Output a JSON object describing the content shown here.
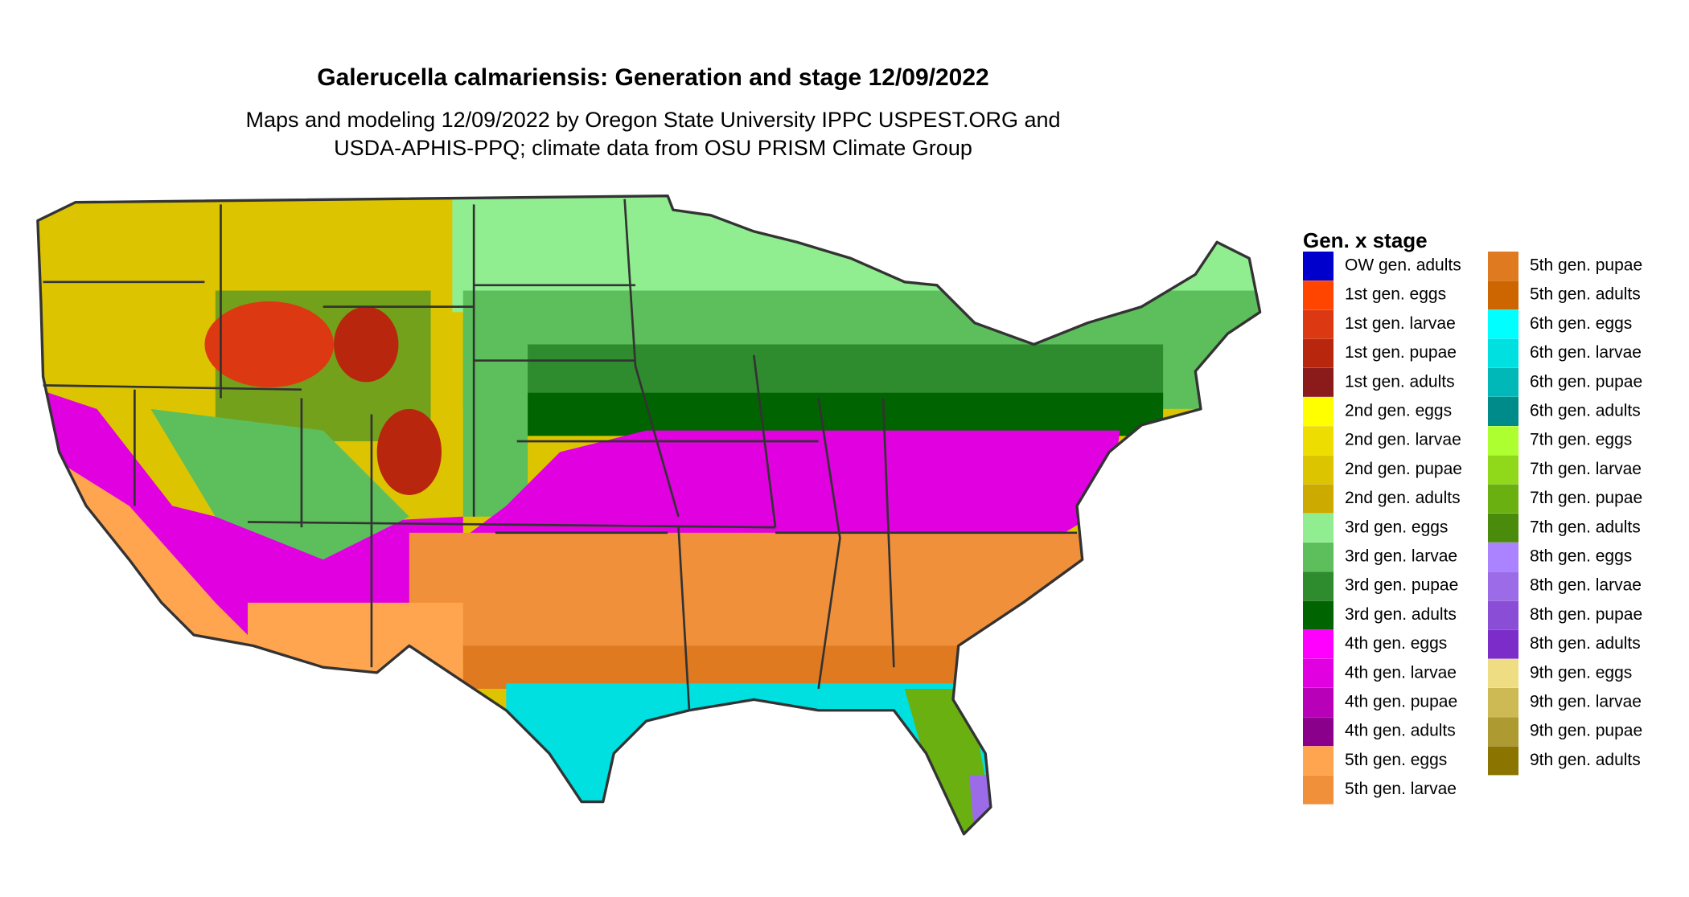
{
  "title": "Galerucella calmariensis: Generation and stage 12/09/2022",
  "subtitle": [
    "Maps and modeling 12/09/2022 by Oregon State University IPPC USPEST.ORG and",
    "USDA-APHIS-PPQ; climate data from OSU PRISM Climate Group"
  ],
  "legend": {
    "title": "Gen. x stage",
    "items": [
      {
        "label": "OW gen. adults",
        "color": "#0000cd"
      },
      {
        "label": "1st gen. eggs",
        "color": "#ff4500"
      },
      {
        "label": "1st gen. larvae",
        "color": "#dc3912"
      },
      {
        "label": "1st gen. pupae",
        "color": "#b8260e"
      },
      {
        "label": "1st gen. adults",
        "color": "#8b1a1a"
      },
      {
        "label": "2nd gen. eggs",
        "color": "#ffff00"
      },
      {
        "label": "2nd gen. larvae",
        "color": "#eedd00"
      },
      {
        "label": "2nd gen. pupae",
        "color": "#ddc400"
      },
      {
        "label": "2nd gen. adults",
        "color": "#ccaa00"
      },
      {
        "label": "3rd gen. eggs",
        "color": "#90ee90"
      },
      {
        "label": "3rd gen. larvae",
        "color": "#5cbf5c"
      },
      {
        "label": "3rd gen. pupae",
        "color": "#2e8b2e"
      },
      {
        "label": "3rd gen. adults",
        "color": "#006400"
      },
      {
        "label": "4th gen. eggs",
        "color": "#ff00ff"
      },
      {
        "label": "4th gen. larvae",
        "color": "#e000e0"
      },
      {
        "label": "4th gen. pupae",
        "color": "#b800b8"
      },
      {
        "label": "4th gen. adults",
        "color": "#8b008b"
      },
      {
        "label": "5th gen. eggs",
        "color": "#ffa54f"
      },
      {
        "label": "5th gen. larvae",
        "color": "#f0903a"
      },
      {
        "label": "5th gen. pupae",
        "color": "#e07a20"
      },
      {
        "label": "5th gen. adults",
        "color": "#cd6600"
      },
      {
        "label": "6th gen. eggs",
        "color": "#00ffff"
      },
      {
        "label": "6th gen. larvae",
        "color": "#00e0e0"
      },
      {
        "label": "6th gen. pupae",
        "color": "#00b8b8"
      },
      {
        "label": "6th gen. adults",
        "color": "#008b8b"
      },
      {
        "label": "7th gen. eggs",
        "color": "#adff2f"
      },
      {
        "label": "7th gen. larvae",
        "color": "#8fd81a"
      },
      {
        "label": "7th gen. pupae",
        "color": "#6ab010"
      },
      {
        "label": "7th gen. adults",
        "color": "#4b8b0b"
      },
      {
        "label": "8th gen. eggs",
        "color": "#ab82ff"
      },
      {
        "label": "8th gen. larvae",
        "color": "#9b6be8"
      },
      {
        "label": "8th gen. pupae",
        "color": "#8a4dd6"
      },
      {
        "label": "8th gen. adults",
        "color": "#7b2cc9"
      },
      {
        "label": "9th gen. eggs",
        "color": "#eedd82"
      },
      {
        "label": "9th gen. larvae",
        "color": "#cdba55"
      },
      {
        "label": "9th gen. pupae",
        "color": "#ad9a30"
      },
      {
        "label": "9th gen. adults",
        "color": "#8b7500"
      }
    ]
  }
}
